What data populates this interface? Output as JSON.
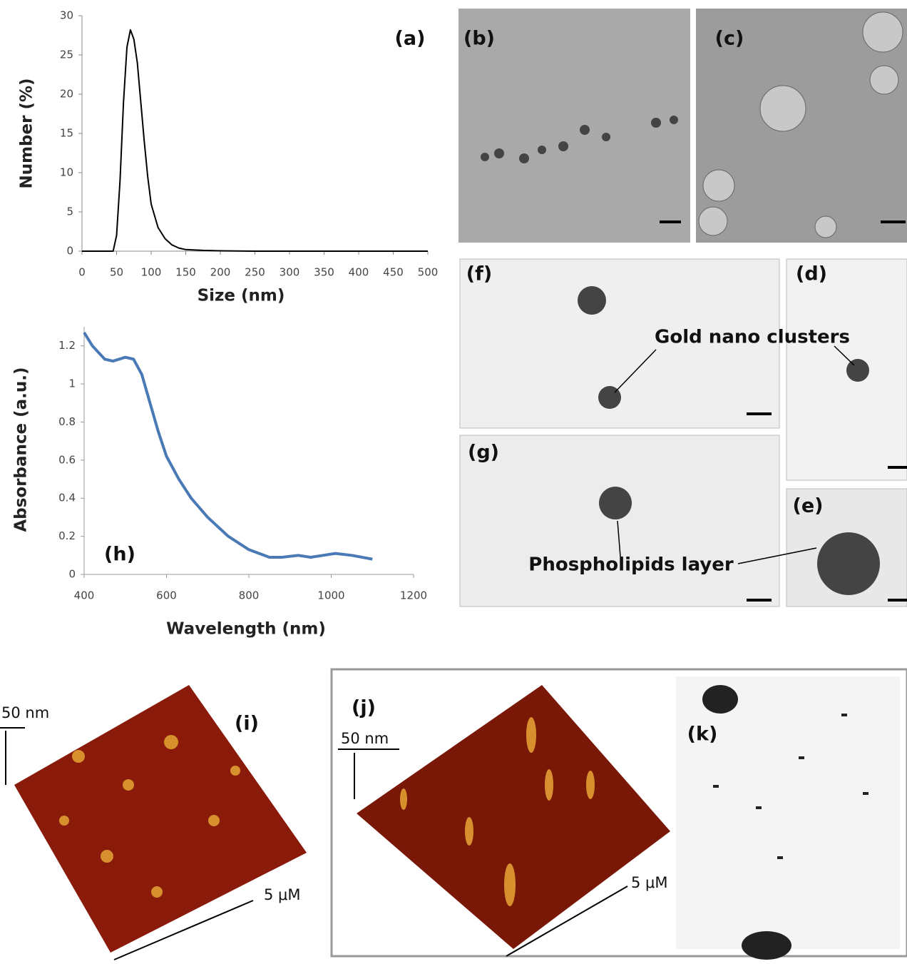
{
  "chart_data": [
    {
      "type": "line",
      "label": "(a)",
      "xlabel": "Size (nm)",
      "ylabel": "Number (%)",
      "color": "#000000",
      "x": [
        0,
        40,
        45,
        50,
        55,
        60,
        65,
        70,
        75,
        80,
        85,
        90,
        95,
        100,
        110,
        120,
        130,
        140,
        150,
        175,
        200,
        250,
        300,
        500
      ],
      "values": [
        0,
        0,
        0,
        2,
        9,
        19,
        26,
        28.2,
        27,
        24,
        19,
        14,
        9.5,
        6,
        3,
        1.6,
        0.8,
        0.4,
        0.2,
        0.1,
        0.05,
        0,
        0,
        0
      ],
      "xlim": [
        0,
        500
      ],
      "xticks": [
        0,
        50,
        100,
        150,
        200,
        250,
        300,
        350,
        400,
        450,
        500
      ],
      "ylim": [
        0,
        30
      ],
      "yticks": [
        0,
        5,
        10,
        15,
        20,
        25,
        30
      ]
    },
    {
      "type": "line",
      "label": "(h)",
      "xlabel": "Wavelength (nm)",
      "ylabel": "Absorbance (a.u.)",
      "color": "#4a7ab5",
      "x": [
        400,
        420,
        450,
        470,
        500,
        520,
        540,
        560,
        580,
        600,
        630,
        660,
        700,
        750,
        800,
        850,
        880,
        920,
        950,
        980,
        1010,
        1050,
        1100
      ],
      "values": [
        1.27,
        1.2,
        1.13,
        1.12,
        1.14,
        1.13,
        1.05,
        0.9,
        0.75,
        0.62,
        0.5,
        0.4,
        0.3,
        0.2,
        0.13,
        0.09,
        0.09,
        0.1,
        0.09,
        0.1,
        0.11,
        0.1,
        0.08
      ],
      "xlim": [
        400,
        1200
      ],
      "xticks": [
        400,
        600,
        800,
        1000,
        1200
      ],
      "ylim": [
        0,
        1.3
      ],
      "yticks": [
        0,
        0.2,
        0.4,
        0.6,
        0.8,
        1,
        1.2
      ]
    }
  ],
  "figure": {
    "panels": [
      "(b)",
      "(c)",
      "(f)",
      "(d)",
      "(g)",
      "(e)",
      "(i)",
      "(j)",
      "(k)"
    ],
    "annotations": [
      "Gold nano clusters",
      "Phospholipids layer",
      "50 nm",
      "5 μM",
      "50 nm",
      "5 μM"
    ]
  }
}
